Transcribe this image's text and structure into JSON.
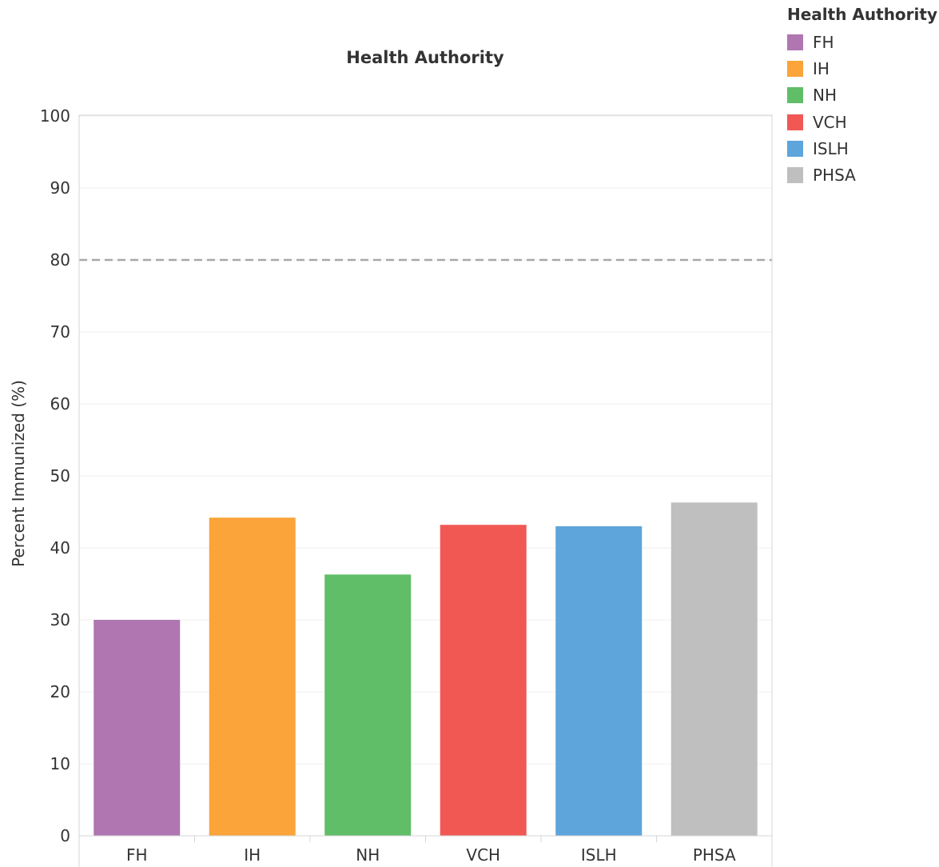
{
  "chart_data": {
    "type": "bar",
    "title": "Health Authority",
    "xlabel": "",
    "ylabel": "Percent Immunized (%)",
    "ylim": [
      0,
      100
    ],
    "yticks": [
      0,
      10,
      20,
      30,
      40,
      50,
      60,
      70,
      80,
      90,
      100
    ],
    "categories": [
      "FH",
      "IH",
      "NH",
      "VCH",
      "ISLH",
      "PHSA"
    ],
    "values": [
      30.0,
      44.2,
      36.3,
      43.2,
      43.0,
      46.3
    ],
    "colors": [
      "#b076b2",
      "#faa43a",
      "#60bd68",
      "#f15854",
      "#5da5da",
      "#bfbfbf"
    ],
    "reference_line": {
      "value": 80,
      "style": "dashed",
      "color": "#a8a8a8"
    },
    "grid": true,
    "legend": {
      "title": "Health Authority",
      "placement": "top-right",
      "items": [
        {
          "label": "FH",
          "color": "#b076b2"
        },
        {
          "label": "IH",
          "color": "#faa43a"
        },
        {
          "label": "NH",
          "color": "#60bd68"
        },
        {
          "label": "VCH",
          "color": "#f15854"
        },
        {
          "label": "ISLH",
          "color": "#5da5da"
        },
        {
          "label": "PHSA",
          "color": "#bfbfbf"
        }
      ]
    }
  }
}
